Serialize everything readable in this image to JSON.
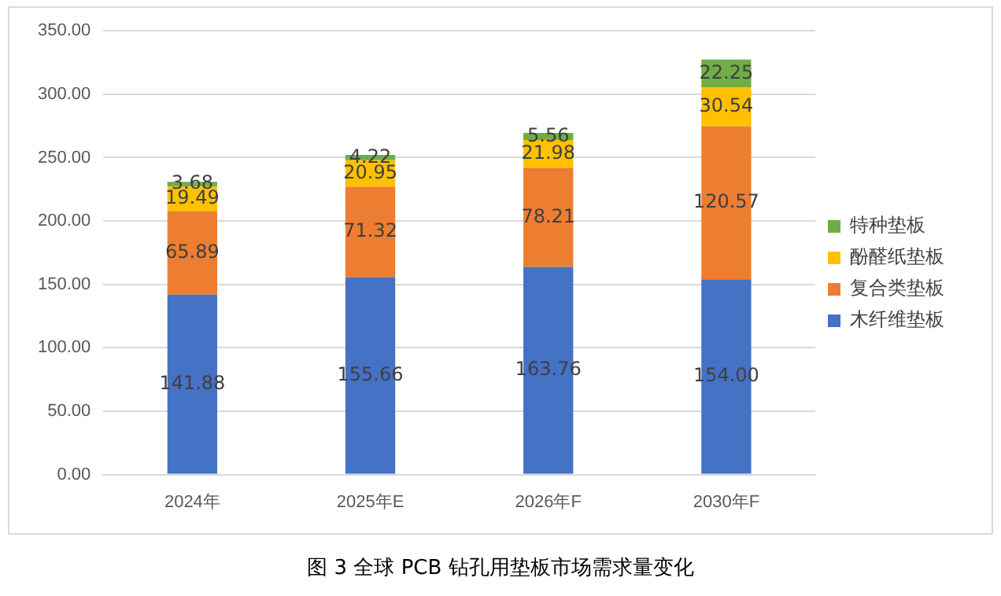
{
  "chart_data": {
    "type": "bar",
    "stacked": true,
    "categories": [
      "2024年",
      "2025年E",
      "2026年F",
      "2030年F"
    ],
    "series": [
      {
        "name": "木纤维垫板",
        "color": "#4472c4",
        "values": [
          141.88,
          155.66,
          163.76,
          154.0
        ],
        "value_labels": [
          "141.88",
          "155.66",
          "163.76",
          "154.00"
        ]
      },
      {
        "name": "复合类垫板",
        "color": "#ed7d31",
        "values": [
          65.89,
          71.32,
          78.21,
          120.57
        ],
        "value_labels": [
          "65.89",
          "71.32",
          "78.21",
          "120.57"
        ]
      },
      {
        "name": "酚醛纸垫板",
        "color": "#ffc000",
        "values": [
          19.49,
          20.95,
          21.98,
          30.54
        ],
        "value_labels": [
          "19.49",
          "20.95",
          "21.98",
          "30.54"
        ]
      },
      {
        "name": "特种垫板",
        "color": "#70ad47",
        "values": [
          3.68,
          4.22,
          5.56,
          22.25
        ],
        "value_labels": [
          "3.68",
          "4.22",
          "5.56",
          "22.25"
        ]
      }
    ],
    "ylim": [
      0,
      350
    ],
    "yticks": [
      {
        "value": 0,
        "label": "0.00"
      },
      {
        "value": 50,
        "label": "50.00"
      },
      {
        "value": 100,
        "label": "100.00"
      },
      {
        "value": 150,
        "label": "150.00"
      },
      {
        "value": 200,
        "label": "200.00"
      },
      {
        "value": 250,
        "label": "250.00"
      },
      {
        "value": 300,
        "label": "300.00"
      },
      {
        "value": 350,
        "label": "350.00"
      }
    ],
    "grid": "y",
    "legend": "right",
    "annotations": [
      "图 3 全球 PCB 钻孔用垫板市场需求量变化"
    ]
  }
}
